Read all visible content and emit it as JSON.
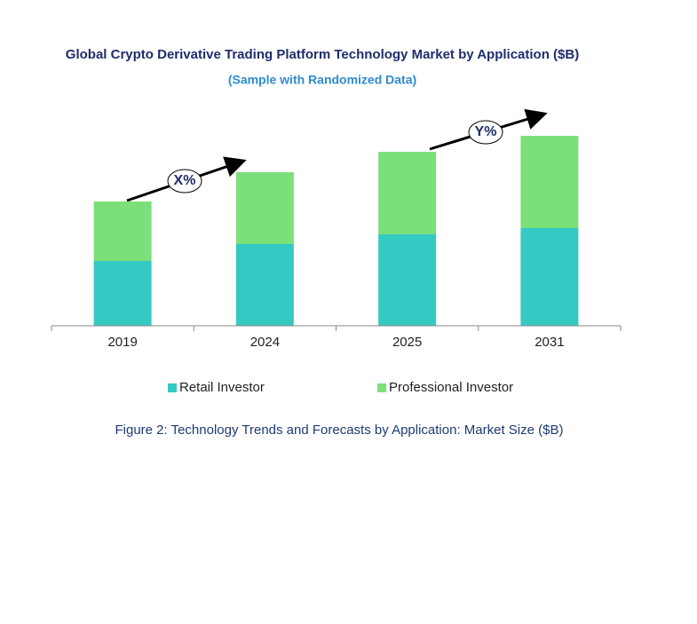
{
  "chart_data": {
    "type": "stacked-bar",
    "title": "Global Crypto Derivative Trading Platform Technology Market by Application ($B)",
    "subtitle": "(Sample with Randomized Data)",
    "categories": [
      "2019",
      "2024",
      "2025",
      "2031"
    ],
    "series": [
      {
        "name": "Retail Investor",
        "color": "#35c9c3",
        "values": [
          73,
          92,
          103,
          110
        ]
      },
      {
        "name": "Professional Investor",
        "color": "#7ce07a",
        "values": [
          67,
          81,
          93,
          104
        ]
      }
    ],
    "ylim": [
      0,
      250
    ],
    "annotations": [
      "X%",
      "Y%"
    ],
    "caption": "Figure 2: Technology Trends and Forecasts by Application: Market Size ($B)",
    "legend": "bottom"
  }
}
